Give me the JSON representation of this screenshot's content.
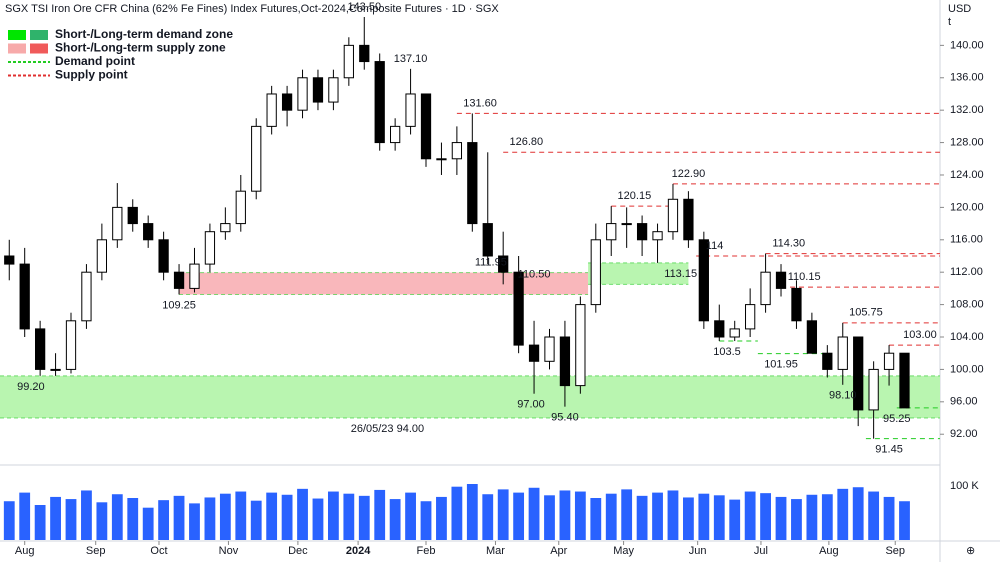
{
  "chart_data": {
    "type": "candlestick",
    "title": "SGX TSI Iron Ore CFR China (62% Fe Fines) Index Futures,Oct-2024,Composite Futures · 1D · SGX",
    "currency": "USD",
    "unit": "t",
    "legend": [
      {
        "parts": [
          "Short-",
          " / ",
          "Long-",
          "term demand zone"
        ],
        "colors": [
          "#00e600",
          "#2fb36b"
        ]
      },
      {
        "parts": [
          "Short-",
          " / ",
          "Long-",
          "term supply zone"
        ],
        "colors": [
          "#f7aaaa",
          "#f05a5a"
        ]
      },
      {
        "parts": [
          "Demand point"
        ],
        "colors": [
          "#22cc22"
        ]
      },
      {
        "parts": [
          "Supply point"
        ],
        "colors": [
          "#e03030"
        ]
      }
    ],
    "open": [
      114,
      113,
      105,
      100,
      100,
      106,
      112,
      116,
      120,
      118,
      116,
      112,
      110,
      113,
      117,
      118,
      122,
      130,
      134,
      132,
      136,
      133,
      136,
      140,
      138,
      128,
      130,
      134,
      126,
      126,
      128,
      118,
      114,
      112,
      103,
      101,
      104,
      98,
      108,
      116,
      118,
      118,
      116,
      117,
      121,
      116,
      106,
      104,
      105,
      108,
      112,
      110,
      106,
      102,
      100,
      104,
      95,
      100,
      102
    ],
    "high": [
      116,
      115,
      106,
      102,
      107,
      113,
      118,
      123,
      121,
      119,
      117,
      113,
      115,
      118,
      120,
      124,
      131,
      135,
      135,
      137,
      137,
      137,
      141,
      143.5,
      139,
      131,
      137.1,
      134,
      128,
      130,
      131.6,
      126.8,
      117,
      114,
      106,
      105,
      106,
      109,
      118,
      120.15,
      120,
      119,
      118,
      122.9,
      122,
      117,
      108,
      106,
      110,
      114.3,
      113,
      111,
      107,
      103,
      105.75,
      104,
      101,
      103,
      102
    ],
    "low": [
      111,
      104,
      99.2,
      99.2,
      99.5,
      105,
      111,
      115,
      117,
      115,
      111,
      109.25,
      109.5,
      112,
      116,
      117,
      121,
      129,
      130,
      131,
      132,
      132,
      135,
      137,
      127,
      127,
      129,
      125,
      124,
      124,
      117,
      113,
      110.5,
      102,
      97,
      100,
      95.4,
      97,
      107,
      114,
      115,
      114,
      113.15,
      116,
      115,
      105,
      103.5,
      103.5,
      104,
      107,
      109,
      105,
      101.95,
      99,
      98.1,
      93,
      91.45,
      98,
      95.25
    ],
    "close": [
      113,
      105,
      100,
      100,
      106,
      112,
      116,
      120,
      118,
      116,
      112,
      110,
      113,
      117,
      118,
      122,
      130,
      134,
      132,
      136,
      133,
      136,
      140,
      138,
      128,
      130,
      134,
      126,
      126,
      128,
      118,
      114,
      112,
      103,
      101,
      104,
      98,
      108,
      116,
      118,
      118,
      116,
      117,
      121,
      116,
      106,
      104,
      105,
      108,
      112,
      110,
      106,
      102,
      100,
      104,
      95,
      100,
      102,
      95.25
    ],
    "volume": [
      72000,
      88000,
      65000,
      80000,
      76000,
      92000,
      70000,
      85000,
      78000,
      60000,
      74000,
      82000,
      68000,
      79000,
      86000,
      90000,
      73000,
      88000,
      84000,
      95000,
      77000,
      90000,
      86000,
      82000,
      93000,
      76000,
      88000,
      72000,
      80000,
      99000,
      104000,
      85000,
      94000,
      88000,
      97000,
      83000,
      92000,
      90000,
      78000,
      86000,
      94000,
      82000,
      88000,
      92000,
      79000,
      86000,
      83000,
      75000,
      90000,
      87000,
      80000,
      76000,
      84000,
      85000,
      95000,
      98000,
      90000,
      80000,
      72000
    ],
    "xticks": [
      {
        "value": 1,
        "label": "Aug"
      },
      {
        "value": 5.6,
        "label": "Sep"
      },
      {
        "value": 9.7,
        "label": "Oct"
      },
      {
        "value": 14.2,
        "label": "Nov"
      },
      {
        "value": 18.7,
        "label": "Dec"
      },
      {
        "value": 22.6,
        "label": "2024"
      },
      {
        "value": 27,
        "label": "Feb"
      },
      {
        "value": 31.5,
        "label": "Mar"
      },
      {
        "value": 35.6,
        "label": "Apr"
      },
      {
        "value": 39.8,
        "label": "May"
      },
      {
        "value": 44.6,
        "label": "Jun"
      },
      {
        "value": 48.7,
        "label": "Jul"
      },
      {
        "value": 53.1,
        "label": "Aug"
      },
      {
        "value": 57.4,
        "label": "Sep"
      }
    ],
    "xlim": [
      -0.6,
      60.3
    ],
    "ylim": [
      88.2,
      145.6
    ],
    "yticks": [
      {
        "value": 92,
        "label": "92.00"
      },
      {
        "value": 96,
        "label": "96.00"
      },
      {
        "value": 100,
        "label": "100.00"
      },
      {
        "value": 104,
        "label": "104.00"
      },
      {
        "value": 108,
        "label": "108.00"
      },
      {
        "value": 112,
        "label": "112.00"
      },
      {
        "value": 116,
        "label": "116.00"
      },
      {
        "value": 120,
        "label": "120.00"
      },
      {
        "value": 124,
        "label": "124.00"
      },
      {
        "value": 128,
        "label": "128.00"
      },
      {
        "value": 132,
        "label": "132.00"
      },
      {
        "value": 136,
        "label": "136.00"
      },
      {
        "value": 140,
        "label": "140.00"
      }
    ],
    "vlim": [
      0,
      130000
    ],
    "vticks": [
      {
        "value": 100000,
        "label": "100 K"
      }
    ],
    "zones": [
      {
        "low": 94,
        "high": 99.2,
        "from": -0.6,
        "to": 60.3,
        "color": "#b9f5b0"
      },
      {
        "low": 109.25,
        "high": 111.95,
        "from": 11,
        "to": 37.5,
        "color": "#f9b7bb"
      },
      {
        "low": 110.5,
        "high": 113.15,
        "from": 37.5,
        "to": 44,
        "color": "#b9f5b0"
      }
    ],
    "levels": [
      {
        "value": 131.6,
        "from": 29,
        "to": 60.3,
        "color": "#e03030"
      },
      {
        "value": 126.8,
        "from": 32,
        "to": 60.3,
        "color": "#e03030"
      },
      {
        "value": 122.9,
        "from": 43,
        "to": 60.3,
        "color": "#e03030"
      },
      {
        "value": 120.15,
        "from": 39,
        "to": 43,
        "color": "#e03030"
      },
      {
        "value": 114.3,
        "from": 49,
        "to": 60.3,
        "color": "#e03030"
      },
      {
        "value": 114,
        "from": 44.5,
        "to": 60.3,
        "color": "#e03030"
      },
      {
        "value": 110.15,
        "from": 50,
        "to": 60.3,
        "color": "#e03030"
      },
      {
        "value": 105.75,
        "from": 54,
        "to": 60.3,
        "color": "#e03030"
      },
      {
        "value": 103,
        "from": 57,
        "to": 60.3,
        "color": "#e03030"
      },
      {
        "value": 103.5,
        "from": 46,
        "to": 48.5,
        "color": "#22cc22"
      },
      {
        "value": 101.95,
        "from": 48.5,
        "to": 53,
        "color": "#22cc22"
      },
      {
        "value": 95.25,
        "from": 57.5,
        "to": 60.3,
        "color": "#22cc22"
      },
      {
        "value": 91.45,
        "from": 55.5,
        "to": 60.3,
        "color": "#22cc22"
      }
    ],
    "annotations": [
      {
        "value": 143.5,
        "label": "143.50",
        "week": 23,
        "side": "above"
      },
      {
        "value": 137.1,
        "label": "137.10",
        "week": 26,
        "side": "above"
      },
      {
        "value": 131.6,
        "label": "131.60",
        "week": 30.5,
        "side": "above"
      },
      {
        "value": 126.8,
        "label": "126.80",
        "week": 33.5,
        "side": "above"
      },
      {
        "value": 122.9,
        "label": "122.90",
        "week": 44,
        "side": "above"
      },
      {
        "value": 120.15,
        "label": "120.15",
        "week": 40.5,
        "side": "above"
      },
      {
        "value": 114,
        "label": "114",
        "week": 45.7,
        "side": "above"
      },
      {
        "value": 114.3,
        "label": "114.30",
        "week": 50.5,
        "side": "above"
      },
      {
        "value": 113.15,
        "label": "113.15",
        "week": 43.5,
        "side": "below"
      },
      {
        "value": 111.95,
        "label": "111.95",
        "week": 31.2,
        "side": "above"
      },
      {
        "value": 110.5,
        "label": "110.50",
        "week": 34,
        "side": "above"
      },
      {
        "value": 110.15,
        "label": "110.15",
        "week": 51.5,
        "side": "above"
      },
      {
        "value": 109.25,
        "label": "109.25",
        "week": 11,
        "side": "below"
      },
      {
        "value": 105.75,
        "label": "105.75",
        "week": 55.5,
        "side": "above"
      },
      {
        "value": 103.5,
        "label": "103.5",
        "week": 46.5,
        "side": "below"
      },
      {
        "value": 103,
        "label": "103.00",
        "week": 59,
        "side": "above"
      },
      {
        "value": 101.95,
        "label": "101.95",
        "week": 50,
        "side": "below"
      },
      {
        "value": 99.2,
        "label": "99.20",
        "week": 1.4,
        "side": "below"
      },
      {
        "value": 98.1,
        "label": "98.10",
        "week": 54,
        "side": "below"
      },
      {
        "value": 97,
        "label": "97.00",
        "week": 33.8,
        "side": "below"
      },
      {
        "value": 95.4,
        "label": "95.40",
        "week": 36,
        "side": "below"
      },
      {
        "value": 95.25,
        "label": "95.25",
        "week": 57.5,
        "side": "below"
      },
      {
        "value": 91.45,
        "label": "91.45",
        "week": 57,
        "side": "below"
      },
      {
        "value": 94,
        "label": "26/05/23 94.00",
        "week": 24.5,
        "side": "below"
      }
    ]
  }
}
